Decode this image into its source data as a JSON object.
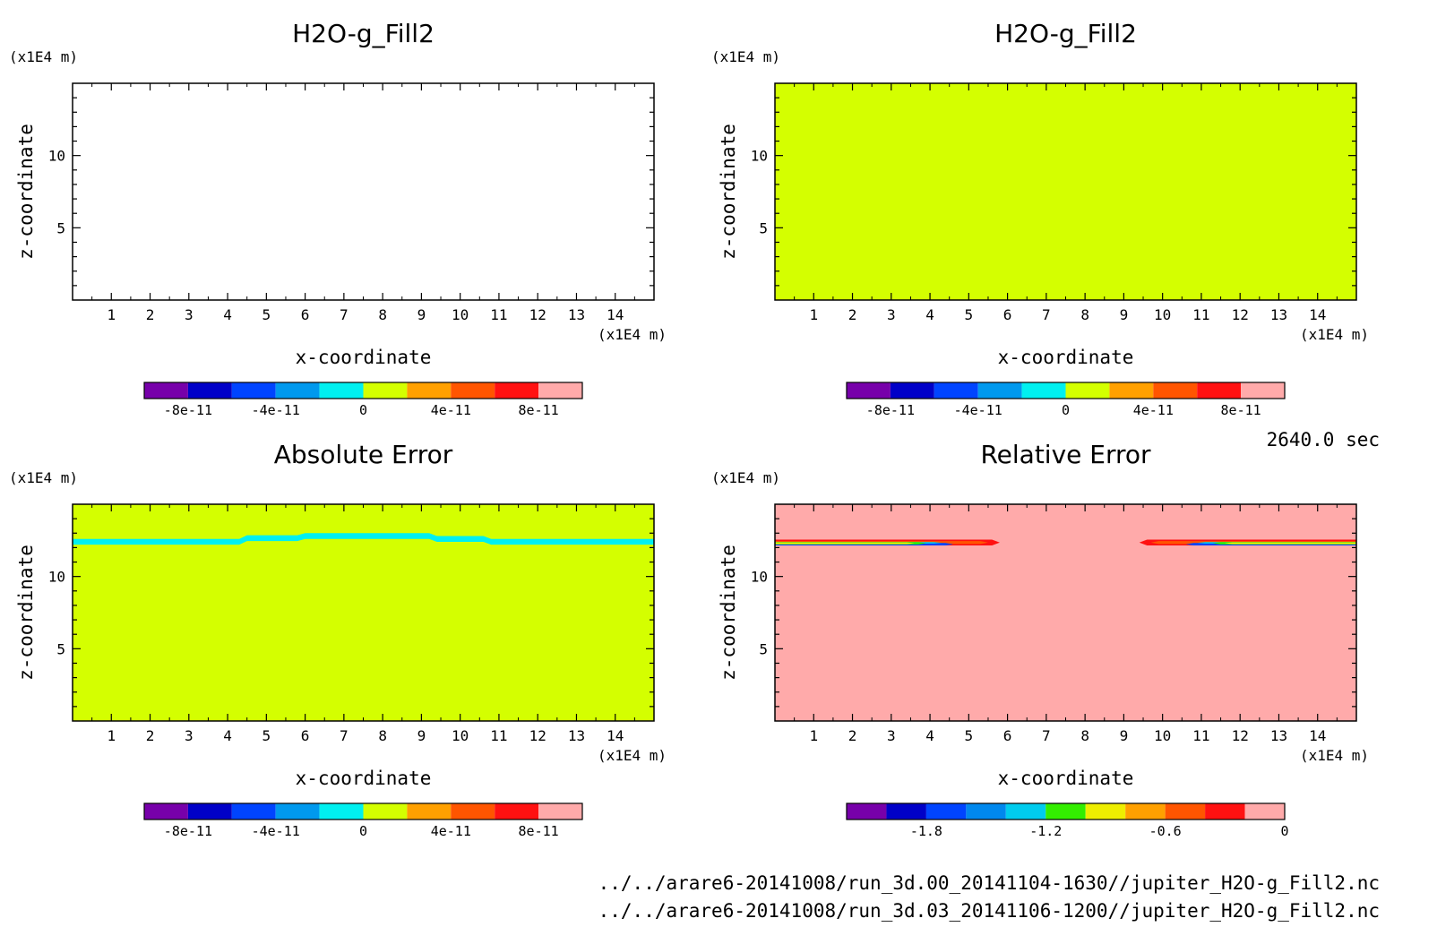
{
  "colors": {
    "scale_a": [
      "#7700aa",
      "#0000c8",
      "#0044ff",
      "#0099ee",
      "#00f0f0",
      "#d4ff00",
      "#ffa000",
      "#ff5500",
      "#ff1111",
      "#ffaaaa"
    ],
    "scale_b": [
      "#7700aa",
      "#0000c8",
      "#0044ff",
      "#0088ee",
      "#00ccee",
      "#33ee00",
      "#eeee00",
      "#ffa000",
      "#ff5500",
      "#ff1111",
      "#ffaaaa"
    ],
    "zero_band": "#00f0f0",
    "fill_green": "#d4ff00",
    "fill_pink": "#ffaaaa"
  },
  "time_label": "2640.0 sec",
  "file_paths": [
    "../../arare6-20141008/run_3d.00_20141104-1630//jupiter_H2O-g_Fill2.nc",
    "../../arare6-20141008/run_3d.03_20141106-1200//jupiter_H2O-g_Fill2.nc"
  ],
  "chart_data": [
    {
      "type": "heatmap",
      "title": "H2O-g_Fill2",
      "xlabel": "x-coordinate",
      "ylabel": "z-coordinate",
      "x_unit": "(x1E4 m)",
      "y_unit": "(x1E4 m)",
      "xlim": [
        0,
        15
      ],
      "ylim": [
        0,
        15
      ],
      "x_ticks": [
        "1",
        "2",
        "3",
        "4",
        "5",
        "6",
        "7",
        "8",
        "9",
        "10",
        "11",
        "12",
        "13",
        "14"
      ],
      "y_ticks": [
        "5",
        "10"
      ],
      "field": "blank",
      "colorbar": {
        "levels": [
          -1e-10,
          -8e-11,
          -6e-11,
          -4e-11,
          -2e-11,
          0,
          2e-11,
          4e-11,
          6e-11,
          8e-11,
          1e-10
        ],
        "labels": [
          "-8e-11",
          "-4e-11",
          "0",
          "4e-11",
          "8e-11"
        ],
        "label_values": [
          -8e-11,
          -4e-11,
          0,
          4e-11,
          8e-11
        ]
      }
    },
    {
      "type": "heatmap",
      "title": "H2O-g_Fill2",
      "xlabel": "x-coordinate",
      "ylabel": "z-coordinate",
      "x_unit": "(x1E4 m)",
      "y_unit": "(x1E4 m)",
      "xlim": [
        0,
        15
      ],
      "ylim": [
        0,
        15
      ],
      "x_ticks": [
        "1",
        "2",
        "3",
        "4",
        "5",
        "6",
        "7",
        "8",
        "9",
        "10",
        "11",
        "12",
        "13",
        "14"
      ],
      "y_ticks": [
        "5",
        "10"
      ],
      "field": "uniform_zero",
      "colorbar": {
        "levels": [
          -1e-10,
          -8e-11,
          -6e-11,
          -4e-11,
          -2e-11,
          0,
          2e-11,
          4e-11,
          6e-11,
          8e-11,
          1e-10
        ],
        "labels": [
          "-8e-11",
          "-4e-11",
          "0",
          "4e-11",
          "8e-11"
        ],
        "label_values": [
          -8e-11,
          -4e-11,
          0,
          4e-11,
          8e-11
        ]
      }
    },
    {
      "type": "heatmap",
      "title": "Absolute Error",
      "xlabel": "x-coordinate",
      "ylabel": "z-coordinate",
      "x_unit": "(x1E4 m)",
      "y_unit": "(x1E4 m)",
      "xlim": [
        0,
        15
      ],
      "ylim": [
        0,
        15
      ],
      "x_ticks": [
        "1",
        "2",
        "3",
        "4",
        "5",
        "6",
        "7",
        "8",
        "9",
        "10",
        "11",
        "12",
        "13",
        "14"
      ],
      "y_ticks": [
        "5",
        "10"
      ],
      "field": "zero_with_band",
      "band_z": [
        12.2,
        12.6
      ],
      "colorbar": {
        "levels": [
          -1e-10,
          -8e-11,
          -6e-11,
          -4e-11,
          -2e-11,
          0,
          2e-11,
          4e-11,
          6e-11,
          8e-11,
          1e-10
        ],
        "labels": [
          "-8e-11",
          "-4e-11",
          "0",
          "4e-11",
          "8e-11"
        ],
        "label_values": [
          -8e-11,
          -4e-11,
          0,
          4e-11,
          8e-11
        ]
      }
    },
    {
      "type": "heatmap",
      "title": "Relative Error",
      "xlabel": "x-coordinate",
      "ylabel": "z-coordinate",
      "x_unit": "(x1E4 m)",
      "y_unit": "(x1E4 m)",
      "xlim": [
        0,
        15
      ],
      "ylim": [
        0,
        15
      ],
      "x_ticks": [
        "1",
        "2",
        "3",
        "4",
        "5",
        "6",
        "7",
        "8",
        "9",
        "10",
        "11",
        "12",
        "13",
        "14"
      ],
      "y_ticks": [
        "5",
        "10"
      ],
      "field": "pink_with_streaks",
      "streaks_x": [
        [
          0,
          5.6
        ],
        [
          9.6,
          15
        ]
      ],
      "streak_z": 12.3,
      "colorbar": {
        "levels": [
          -2.2,
          -2.0,
          -1.8,
          -1.6,
          -1.4,
          -1.2,
          -1.0,
          -0.8,
          -0.6,
          -0.4,
          -0.2,
          0
        ],
        "labels": [
          "-1.8",
          "-1.2",
          "-0.6",
          "0"
        ],
        "label_values": [
          -1.8,
          -1.2,
          -0.6,
          0
        ]
      }
    }
  ]
}
